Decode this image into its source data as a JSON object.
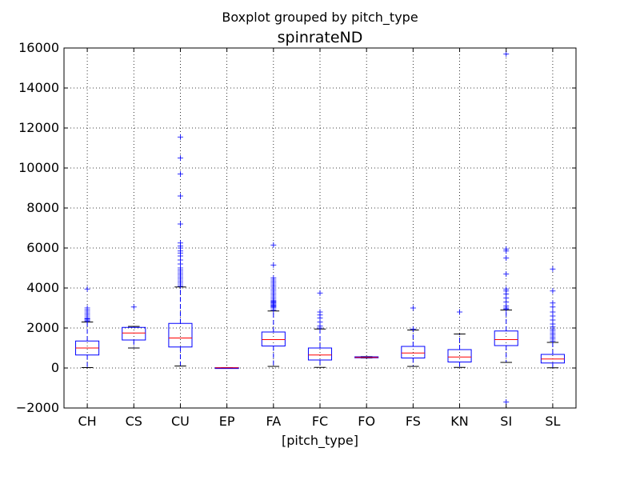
{
  "chart_data": {
    "type": "boxplot",
    "suptitle": "Boxplot grouped by pitch_type",
    "title": "spinrateND",
    "xlabel": "[pitch_type]",
    "ylabel": "",
    "ylim": [
      -2000,
      16000
    ],
    "yticks": [
      -2000,
      0,
      2000,
      4000,
      6000,
      8000,
      10000,
      12000,
      14000,
      16000
    ],
    "ytick_labels": [
      "−2000",
      "0",
      "2000",
      "4000",
      "6000",
      "8000",
      "10000",
      "12000",
      "14000",
      "16000"
    ],
    "grid": true,
    "colors": {
      "box": "#0000ff",
      "median": "#ff0000",
      "whisker": "#0000ff",
      "cap": "#000000",
      "flier": "#0000ff"
    },
    "categories": [
      "CH",
      "CS",
      "CU",
      "EP",
      "FA",
      "FC",
      "FO",
      "FS",
      "KN",
      "SI",
      "SL"
    ],
    "boxes": [
      {
        "label": "CH",
        "whislo": 20,
        "q1": 650,
        "med": 1000,
        "q3": 1350,
        "whishi": 2300,
        "fliers": [
          2350,
          2400,
          2450,
          2500,
          2600,
          2700,
          2800,
          2900,
          3000,
          3950
        ]
      },
      {
        "label": "CS",
        "whislo": 1000,
        "q1": 1400,
        "med": 1750,
        "q3": 2030,
        "whishi": 2080,
        "fliers": [
          3050
        ]
      },
      {
        "label": "CU",
        "whislo": 100,
        "q1": 1050,
        "med": 1500,
        "q3": 2230,
        "whishi": 4050,
        "fliers": [
          4100,
          4200,
          4300,
          4400,
          4500,
          4600,
          4700,
          4800,
          4900,
          5000,
          5200,
          5400,
          5600,
          5750,
          5850,
          6000,
          6100,
          6250,
          7200,
          8600,
          9700,
          10500,
          11550
        ]
      },
      {
        "label": "EP",
        "whislo": 0,
        "q1": 5,
        "med": 10,
        "q3": 15,
        "whishi": 20,
        "fliers": []
      },
      {
        "label": "FA",
        "whislo": 80,
        "q1": 1100,
        "med": 1420,
        "q3": 1800,
        "whishi": 2850,
        "fliers": [
          2900,
          3000,
          3050,
          3100,
          3150,
          3200,
          3250,
          3300,
          3350,
          3400,
          3500,
          3600,
          3700,
          3800,
          3900,
          4000,
          4100,
          4200,
          4300,
          4400,
          4500,
          5150,
          6150
        ]
      },
      {
        "label": "FC",
        "whislo": 30,
        "q1": 400,
        "med": 650,
        "q3": 1000,
        "whishi": 1950,
        "fliers": [
          2000,
          2100,
          2300,
          2500,
          2650,
          2800,
          3750
        ]
      },
      {
        "label": "FO",
        "whislo": 500,
        "q1": 510,
        "med": 530,
        "q3": 560,
        "whishi": 570,
        "fliers": []
      },
      {
        "label": "FS",
        "whislo": 80,
        "q1": 500,
        "med": 750,
        "q3": 1080,
        "whishi": 1900,
        "fliers": [
          1950,
          3000
        ]
      },
      {
        "label": "KN",
        "whislo": 30,
        "q1": 300,
        "med": 550,
        "q3": 920,
        "whishi": 1700,
        "fliers": [
          2800
        ]
      },
      {
        "label": "SI",
        "whislo": 280,
        "q1": 1120,
        "med": 1420,
        "q3": 1850,
        "whishi": 2900,
        "fliers": [
          2950,
          3000,
          3100,
          3300,
          3500,
          3700,
          3850,
          3950,
          4700,
          5500,
          5850,
          5950,
          15700,
          -1700
        ]
      },
      {
        "label": "SL",
        "whislo": 10,
        "q1": 250,
        "med": 450,
        "q3": 680,
        "whishi": 1280,
        "fliers": [
          1350,
          1450,
          1550,
          1650,
          1750,
          1850,
          1950,
          2050,
          2200,
          2400,
          2600,
          2800,
          3050,
          3250,
          3850,
          4950
        ]
      }
    ]
  }
}
